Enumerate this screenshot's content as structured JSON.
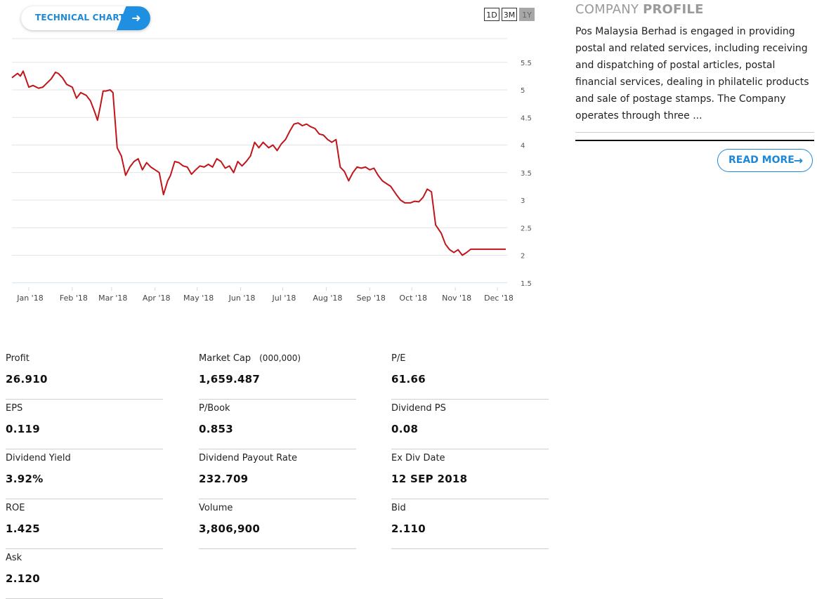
{
  "technical_chart_label": "TECHNICAL CHART",
  "ranges": [
    "1D",
    "3M",
    "1Y"
  ],
  "active_range": "1Y",
  "line_color": "#c0151b",
  "accent_color": "#1e88d8",
  "chart_data": {
    "type": "line",
    "title": "",
    "xlabel": "",
    "ylabel": "",
    "ylim": [
      1.5,
      5.5
    ],
    "yticks": [
      "1.5",
      "2",
      "2.5",
      "3",
      "3.5",
      "4",
      "4.5",
      "5",
      "5.5"
    ],
    "xtick_labels": [
      "Jan '18",
      "Feb '18",
      "Mar '18",
      "Apr '18",
      "May '18",
      "Jun '18",
      "Jul '18",
      "Aug '18",
      "Sep '18",
      "Oct '18",
      "Nov '18",
      "Dec '18"
    ],
    "grid": "horizontal",
    "series": [
      {
        "x": [
          "2017-12-20",
          "2017-12-24",
          "2017-12-26",
          "2017-12-28",
          "2018-01-01",
          "2018-01-04",
          "2018-01-08",
          "2018-01-11",
          "2018-01-13",
          "2018-01-17",
          "2018-01-20",
          "2018-01-22",
          "2018-01-25",
          "2018-01-28",
          "2018-02-01",
          "2018-02-04",
          "2018-02-07",
          "2018-02-11",
          "2018-02-14",
          "2018-02-17",
          "2018-02-19",
          "2018-02-21",
          "2018-02-23",
          "2018-02-25",
          "2018-02-28",
          "2018-03-02",
          "2018-03-05",
          "2018-03-08",
          "2018-03-11",
          "2018-03-14",
          "2018-03-17",
          "2018-03-20",
          "2018-03-23",
          "2018-03-26",
          "2018-03-29",
          "2018-04-01",
          "2018-04-04",
          "2018-04-07",
          "2018-04-10",
          "2018-04-12",
          "2018-04-15",
          "2018-04-18",
          "2018-04-21",
          "2018-04-24",
          "2018-04-27",
          "2018-04-30",
          "2018-05-03",
          "2018-05-06",
          "2018-05-09",
          "2018-05-12",
          "2018-05-15",
          "2018-05-18",
          "2018-05-21",
          "2018-05-24",
          "2018-05-27",
          "2018-05-30",
          "2018-06-02",
          "2018-06-05",
          "2018-06-08",
          "2018-06-11",
          "2018-06-14",
          "2018-06-17",
          "2018-06-21",
          "2018-06-24",
          "2018-06-27",
          "2018-06-30",
          "2018-07-03",
          "2018-07-06",
          "2018-07-09",
          "2018-07-12",
          "2018-07-15",
          "2018-07-18",
          "2018-07-21",
          "2018-07-24",
          "2018-07-27",
          "2018-07-30",
          "2018-08-02",
          "2018-08-05",
          "2018-08-08",
          "2018-08-11",
          "2018-08-14",
          "2018-08-17",
          "2018-08-20",
          "2018-08-23",
          "2018-08-26",
          "2018-08-29",
          "2018-09-01",
          "2018-09-04",
          "2018-09-07",
          "2018-09-10",
          "2018-09-13",
          "2018-09-16",
          "2018-09-20",
          "2018-09-23",
          "2018-09-26",
          "2018-09-30",
          "2018-10-03",
          "2018-10-06",
          "2018-10-09",
          "2018-10-12",
          "2018-10-15",
          "2018-10-18",
          "2018-10-22",
          "2018-10-25",
          "2018-10-28",
          "2018-10-31",
          "2018-11-03",
          "2018-11-06",
          "2018-11-09",
          "2018-11-12",
          "2018-11-14",
          "2018-11-16",
          "2018-11-19",
          "2018-11-21",
          "2018-11-23",
          "2018-11-25",
          "2018-11-27",
          "2018-11-29",
          "2018-12-01",
          "2018-12-03",
          "2018-12-05",
          "2018-12-07"
        ],
        "values": [
          5.22,
          5.3,
          5.25,
          5.34,
          5.05,
          5.08,
          5.03,
          5.05,
          5.1,
          5.2,
          5.32,
          5.3,
          5.22,
          5.1,
          5.05,
          4.85,
          4.95,
          4.9,
          4.8,
          4.6,
          4.45,
          4.7,
          4.98,
          4.98,
          5.0,
          4.95,
          3.95,
          3.8,
          3.45,
          3.6,
          3.7,
          3.75,
          3.55,
          3.68,
          3.6,
          3.55,
          3.5,
          3.1,
          3.35,
          3.45,
          3.7,
          3.68,
          3.62,
          3.6,
          3.47,
          3.55,
          3.62,
          3.6,
          3.65,
          3.6,
          3.75,
          3.7,
          3.58,
          3.62,
          3.5,
          3.7,
          3.62,
          3.7,
          3.8,
          4.05,
          3.95,
          4.05,
          3.95,
          4.0,
          3.9,
          4.02,
          4.1,
          4.25,
          4.38,
          4.4,
          4.35,
          4.38,
          4.33,
          4.3,
          4.2,
          4.18,
          4.1,
          4.05,
          4.1,
          3.6,
          3.52,
          3.35,
          3.5,
          3.6,
          3.58,
          3.6,
          3.55,
          3.58,
          3.45,
          3.35,
          3.3,
          3.25,
          3.1,
          3.0,
          2.95,
          2.95,
          2.98,
          2.97,
          3.05,
          3.2,
          3.15,
          2.55,
          2.4,
          2.2,
          2.1,
          2.05,
          2.1,
          2.0,
          2.05,
          2.11,
          2.11,
          2.11,
          2.11,
          2.11,
          2.11,
          2.11,
          2.11,
          2.11,
          2.11,
          2.11,
          2.11,
          2.11
        ]
      }
    ]
  },
  "profile": {
    "title_light": "COMPANY ",
    "title_bold": "PROFILE",
    "description": "Pos Malaysia Berhad is engaged in providing postal and related services, including receiving and dispatching of postal articles, postal financial services, dealing in philatelic products and sale of postage stamps. The Company operates through three ...",
    "read_more": "READ MORE"
  },
  "stats": [
    {
      "label": "Profit",
      "unit": "",
      "value": "26.910"
    },
    {
      "label": "Market Cap",
      "unit": "(000,000)",
      "value": "1,659.487"
    },
    {
      "label": "P/E",
      "unit": "",
      "value": "61.66"
    },
    {
      "label": "EPS",
      "unit": "",
      "value": "0.119"
    },
    {
      "label": "P/Book",
      "unit": "",
      "value": "0.853"
    },
    {
      "label": "Dividend PS",
      "unit": "",
      "value": "0.08"
    },
    {
      "label": "Dividend Yield",
      "unit": "",
      "value": "3.92%"
    },
    {
      "label": "Dividend Payout Rate",
      "unit": "",
      "value": "232.709"
    },
    {
      "label": "Ex Div Date",
      "unit": "",
      "value": "12 SEP 2018"
    },
    {
      "label": "ROE",
      "unit": "",
      "value": "1.425"
    },
    {
      "label": "Volume",
      "unit": "",
      "value": "3,806,900"
    },
    {
      "label": "Bid",
      "unit": "",
      "value": "2.110"
    },
    {
      "label": "Ask",
      "unit": "",
      "value": "2.120"
    }
  ]
}
